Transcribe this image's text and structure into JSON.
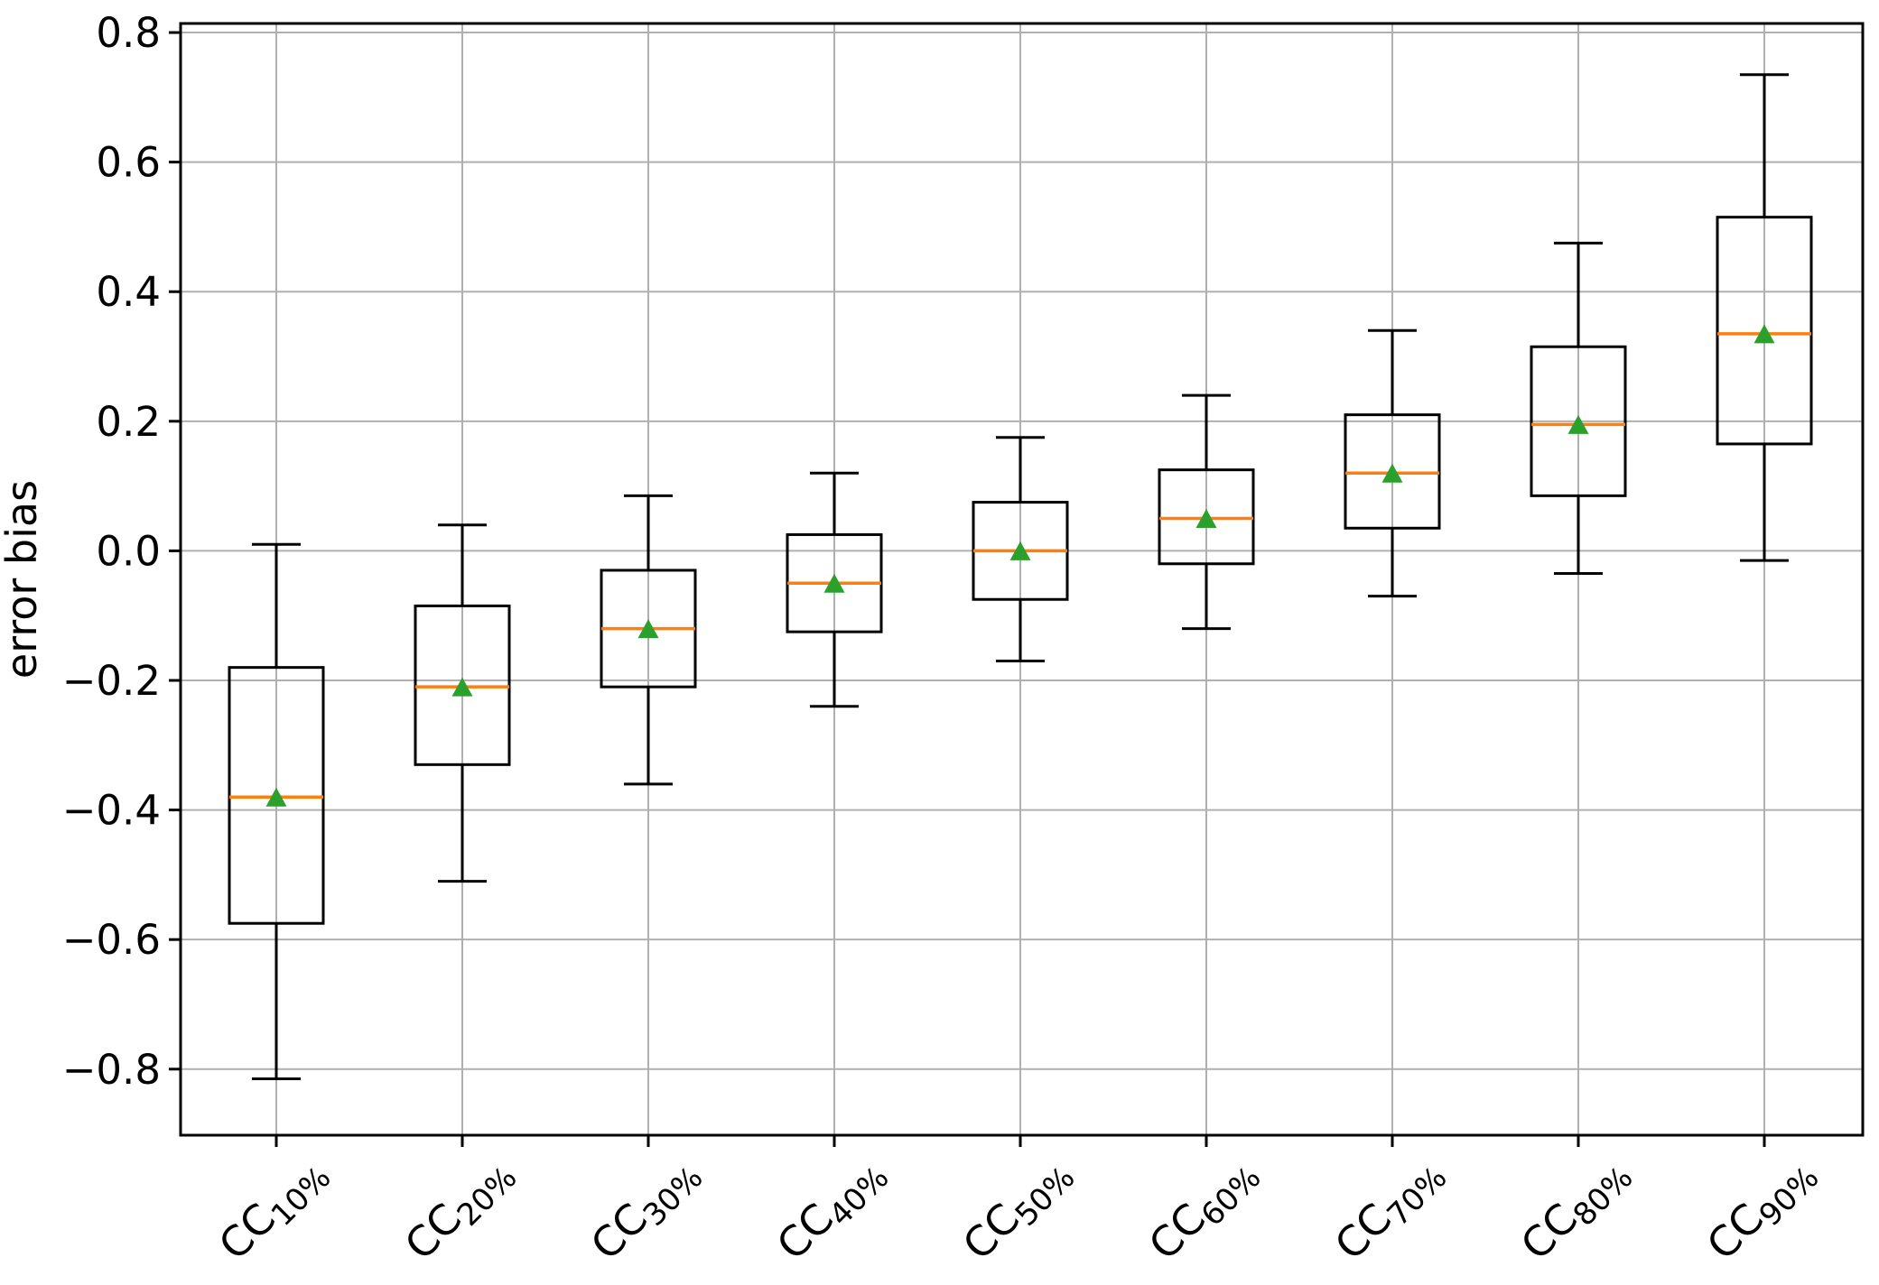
{
  "figure": {
    "background": "#ffffff",
    "ylabel": "error bias"
  },
  "chart_data": {
    "type": "boxplot",
    "title": "",
    "xlabel": "",
    "ylabel": "error bias",
    "ylim": [
      -0.902,
      0.814
    ],
    "grid": true,
    "legend": false,
    "yticks": [
      {
        "value": 0.8,
        "label": "0.8"
      },
      {
        "value": 0.6,
        "label": "0.6"
      },
      {
        "value": 0.4,
        "label": "0.4"
      },
      {
        "value": 0.2,
        "label": "0.2"
      },
      {
        "value": 0.0,
        "label": "0.0"
      },
      {
        "value": -0.2,
        "label": "−0.2"
      },
      {
        "value": -0.4,
        "label": "−0.4"
      },
      {
        "value": -0.6,
        "label": "−0.6"
      },
      {
        "value": -0.8,
        "label": "−0.8"
      }
    ],
    "categories": [
      {
        "base": "CC",
        "sub": "10%"
      },
      {
        "base": "CC",
        "sub": "20%"
      },
      {
        "base": "CC",
        "sub": "30%"
      },
      {
        "base": "CC",
        "sub": "40%"
      },
      {
        "base": "CC",
        "sub": "50%"
      },
      {
        "base": "CC",
        "sub": "60%"
      },
      {
        "base": "CC",
        "sub": "70%"
      },
      {
        "base": "CC",
        "sub": "80%"
      },
      {
        "base": "CC",
        "sub": "90%"
      }
    ],
    "boxes": [
      {
        "whisker_low": -0.815,
        "q1": -0.575,
        "median": -0.38,
        "q3": -0.18,
        "whisker_high": 0.01,
        "mean": -0.38
      },
      {
        "whisker_low": -0.51,
        "q1": -0.33,
        "median": -0.21,
        "q3": -0.085,
        "whisker_high": 0.04,
        "mean": -0.21
      },
      {
        "whisker_low": -0.36,
        "q1": -0.21,
        "median": -0.12,
        "q3": -0.03,
        "whisker_high": 0.085,
        "mean": -0.12
      },
      {
        "whisker_low": -0.24,
        "q1": -0.125,
        "median": -0.05,
        "q3": 0.025,
        "whisker_high": 0.12,
        "mean": -0.05
      },
      {
        "whisker_low": -0.17,
        "q1": -0.075,
        "median": 0.0,
        "q3": 0.075,
        "whisker_high": 0.175,
        "mean": 0.0
      },
      {
        "whisker_low": -0.12,
        "q1": -0.02,
        "median": 0.05,
        "q3": 0.125,
        "whisker_high": 0.24,
        "mean": 0.05
      },
      {
        "whisker_low": -0.07,
        "q1": 0.035,
        "median": 0.12,
        "q3": 0.21,
        "whisker_high": 0.34,
        "mean": 0.12
      },
      {
        "whisker_low": -0.035,
        "q1": 0.085,
        "median": 0.195,
        "q3": 0.315,
        "whisker_high": 0.475,
        "mean": 0.195
      },
      {
        "whisker_low": -0.015,
        "q1": 0.165,
        "median": 0.335,
        "q3": 0.515,
        "whisker_high": 0.735,
        "mean": 0.335
      }
    ],
    "colors": {
      "box_edge": "#000000",
      "whisker": "#000000",
      "median": "#ff7f0e",
      "mean_marker": "#2ca02c",
      "grid": "#b0b0b0",
      "spine": "#000000",
      "background": "#ffffff"
    }
  }
}
